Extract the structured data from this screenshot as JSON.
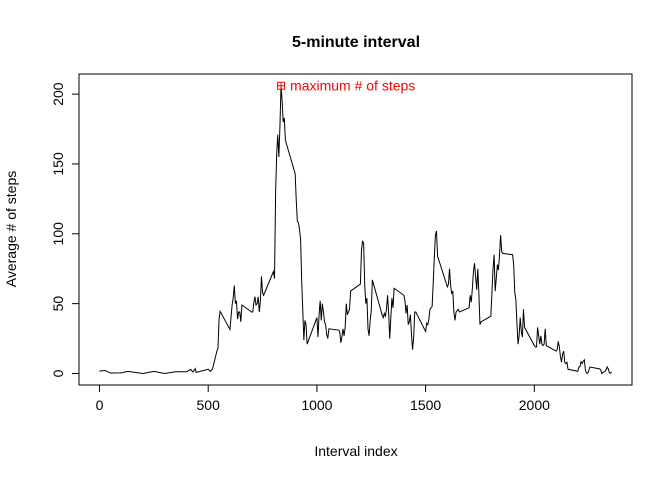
{
  "chart_data": {
    "type": "line",
    "title": "5-minute interval",
    "xlabel": "Interval index",
    "ylabel": "Average # of steps",
    "x": [
      0,
      25,
      50,
      100,
      130,
      200,
      250,
      300,
      350,
      400,
      420,
      430,
      440,
      445,
      500,
      510,
      520,
      540,
      545,
      550,
      555,
      600,
      610,
      615,
      620,
      625,
      630,
      635,
      640,
      645,
      650,
      655,
      700,
      705,
      710,
      715,
      720,
      725,
      730,
      735,
      740,
      745,
      750,
      755,
      800,
      805,
      810,
      815,
      820,
      825,
      830,
      835,
      840,
      845,
      850,
      855,
      900,
      905,
      910,
      915,
      920,
      925,
      930,
      935,
      940,
      945,
      950,
      955,
      1000,
      1005,
      1010,
      1015,
      1020,
      1025,
      1030,
      1035,
      1040,
      1045,
      1050,
      1055,
      1100,
      1105,
      1110,
      1115,
      1120,
      1125,
      1130,
      1135,
      1140,
      1145,
      1150,
      1155,
      1200,
      1205,
      1210,
      1215,
      1220,
      1225,
      1230,
      1235,
      1240,
      1245,
      1250,
      1255,
      1300,
      1305,
      1310,
      1315,
      1320,
      1325,
      1330,
      1335,
      1340,
      1345,
      1350,
      1355,
      1400,
      1405,
      1410,
      1415,
      1420,
      1425,
      1430,
      1435,
      1440,
      1445,
      1450,
      1455,
      1500,
      1505,
      1510,
      1515,
      1520,
      1525,
      1530,
      1535,
      1540,
      1545,
      1550,
      1555,
      1600,
      1605,
      1610,
      1615,
      1620,
      1625,
      1630,
      1635,
      1640,
      1645,
      1650,
      1655,
      1700,
      1705,
      1710,
      1715,
      1720,
      1725,
      1730,
      1735,
      1740,
      1745,
      1750,
      1755,
      1800,
      1805,
      1810,
      1815,
      1820,
      1825,
      1830,
      1835,
      1840,
      1845,
      1850,
      1855,
      1900,
      1905,
      1910,
      1915,
      1920,
      1925,
      1930,
      1935,
      1940,
      1945,
      1950,
      1955,
      2000,
      2005,
      2010,
      2015,
      2020,
      2025,
      2030,
      2035,
      2040,
      2045,
      2050,
      2055,
      2100,
      2105,
      2110,
      2115,
      2120,
      2125,
      2130,
      2135,
      2140,
      2145,
      2150,
      2155,
      2200,
      2205,
      2210,
      2215,
      2220,
      2225,
      2230,
      2235,
      2240,
      2245,
      2250,
      2255,
      2300,
      2305,
      2310,
      2315,
      2320,
      2325,
      2330,
      2335,
      2340,
      2345,
      2350,
      2355
    ],
    "values": [
      1.7,
      2.1,
      0.3,
      0.4,
      1.5,
      0,
      1.5,
      0,
      1.2,
      1.2,
      2.9,
      1,
      3.5,
      0.8,
      3,
      1.5,
      3.3,
      16,
      18,
      39,
      44.5,
      31.5,
      49,
      54,
      63,
      50,
      52,
      39,
      44,
      44,
      37,
      49,
      44,
      44,
      51,
      55,
      49,
      50,
      55,
      44,
      52,
      69.5,
      58,
      56,
      73,
      68,
      129,
      157,
      171,
      155,
      177,
      206,
      195,
      180,
      183,
      167,
      143,
      124,
      109,
      108,
      103,
      96,
      66,
      45,
      24,
      38,
      35,
      21,
      40,
      26,
      42,
      52,
      38,
      50,
      44,
      37,
      35,
      28,
      25,
      32,
      31,
      30,
      22,
      26,
      32,
      27,
      33,
      50,
      42,
      44,
      46,
      59,
      64,
      88,
      95,
      93,
      63,
      50,
      54,
      32,
      27,
      38,
      45,
      67,
      42,
      40,
      43,
      41,
      46,
      56,
      43,
      25,
      40,
      54,
      47,
      61,
      56,
      52,
      43,
      49,
      35,
      37,
      42,
      28,
      17,
      26,
      44,
      44,
      30,
      36,
      35,
      39,
      46,
      47,
      48,
      65,
      83,
      99,
      102,
      84,
      62,
      64,
      75,
      63,
      57,
      59,
      44,
      38,
      44,
      45,
      46,
      44,
      47,
      56,
      51,
      61,
      73,
      79,
      69,
      60,
      75,
      57,
      35,
      37,
      41,
      58,
      75,
      85,
      59,
      68,
      78,
      74,
      85,
      99,
      87,
      86,
      85,
      78,
      58,
      53,
      36,
      21,
      27,
      40,
      30,
      26,
      46,
      33,
      20,
      19,
      19,
      33,
      27,
      21,
      27,
      21,
      20,
      21,
      32,
      20,
      16,
      17,
      23,
      19,
      12,
      8,
      14,
      16,
      8,
      7,
      8,
      3,
      1.6,
      4.6,
      4.8,
      8.5,
      7.1,
      8.7,
      9.8,
      2.2,
      0.3,
      0.1,
      1.6,
      4.6,
      3.3,
      2.8,
      0,
      0.8,
      1,
      1.6,
      2.6,
      4.7,
      3.3,
      0.6,
      0.2,
      1.1
    ],
    "color": "#000000",
    "xlim": [
      -94.2,
      2449.2
    ],
    "ylim": [
      -8.25,
      214.4
    ],
    "xticks": [
      0,
      500,
      1000,
      1500,
      2000
    ],
    "yticks": [
      0,
      50,
      100,
      150,
      200
    ],
    "annotation": {
      "text": "maximum # of steps",
      "x": 835,
      "y": 206,
      "color": "#ff0000"
    }
  }
}
